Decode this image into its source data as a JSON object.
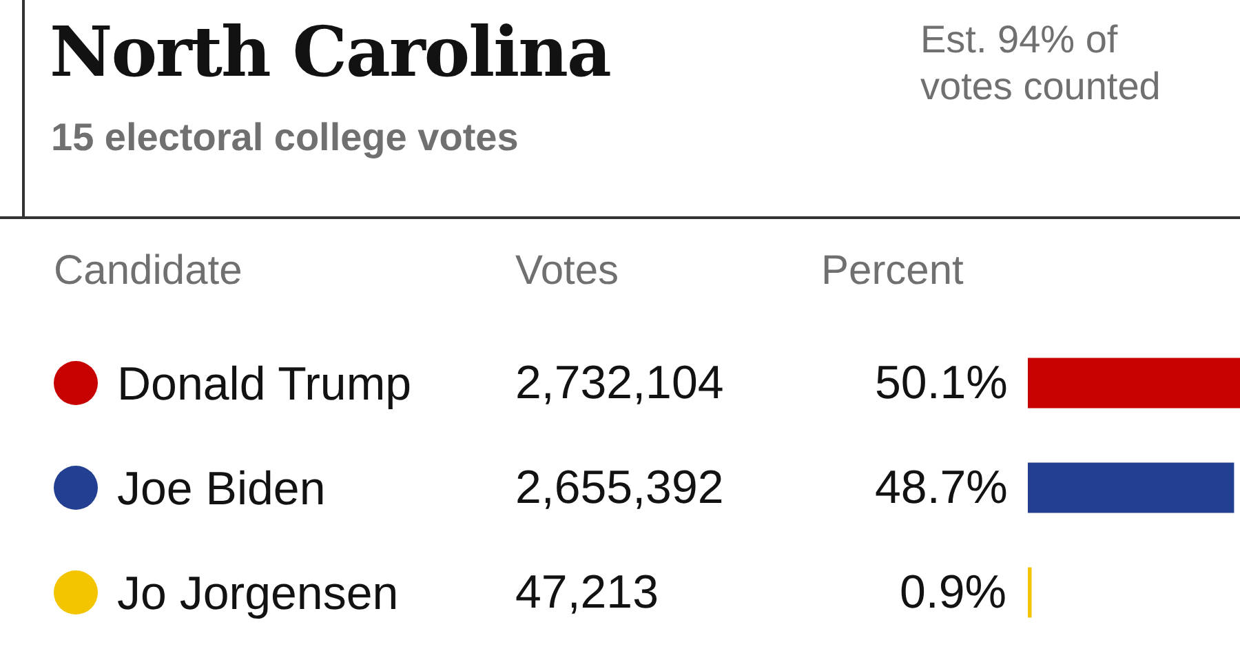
{
  "chart_data": {
    "type": "bar",
    "orientation": "horizontal",
    "title": "North Carolina",
    "subtitle": "15 electoral college votes",
    "categories": [
      "Donald Trump",
      "Joe Biden",
      "Jo Jorgensen"
    ],
    "values": [
      50.1,
      48.7,
      0.9
    ],
    "colors": [
      "#c70000",
      "#223f91",
      "#f2c500"
    ],
    "value_labels": [
      "50.1%",
      "48.7%",
      "0.9%"
    ],
    "xlim": [
      0,
      50.1
    ],
    "tick_labels": "y",
    "grid": false,
    "legend": false,
    "annotations": [
      "Candidate",
      "Votes",
      "Percent",
      "2,732,104",
      "2,655,392",
      "47,213",
      "Est. 94% of votes counted"
    ]
  }
}
